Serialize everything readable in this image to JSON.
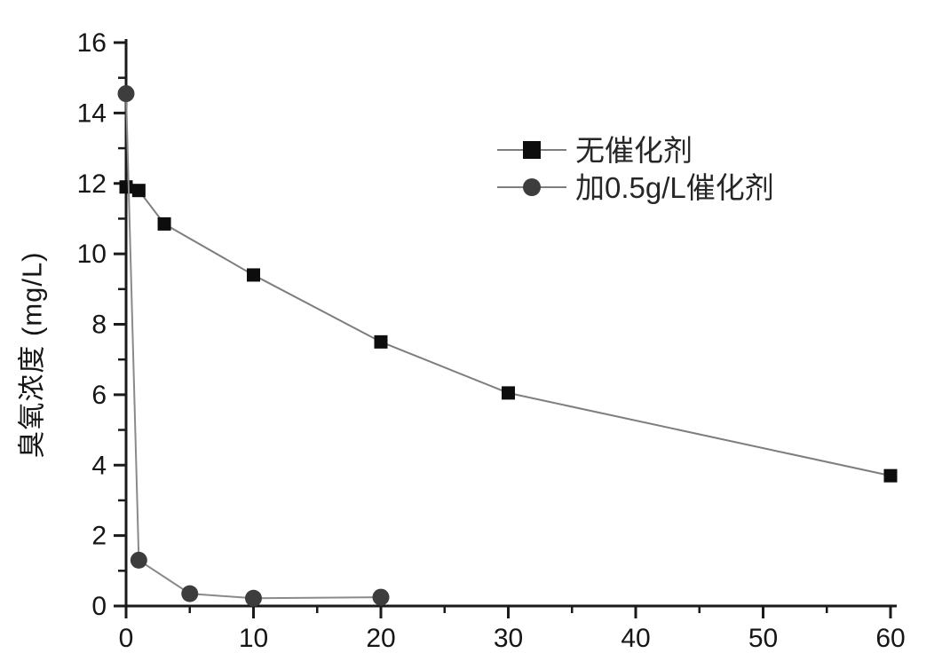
{
  "chart_data": {
    "type": "line",
    "title": "",
    "xlabel": "",
    "ylabel": "臭氧浓度 (mg/L)",
    "xlim": [
      0,
      60
    ],
    "ylim": [
      0,
      16
    ],
    "x_major_ticks": [
      0,
      10,
      20,
      30,
      40,
      50,
      60
    ],
    "x_minor_ticks": [
      5,
      15,
      25,
      35,
      45,
      55
    ],
    "y_major_ticks": [
      0,
      2,
      4,
      6,
      8,
      10,
      12,
      14,
      16
    ],
    "y_minor_ticks": [
      1,
      3,
      5,
      7,
      9,
      11,
      13,
      15
    ],
    "grid": false,
    "legend_position": "upper-right-inside",
    "colors": {
      "axis": "#1a1a1a",
      "series_line": "#7e7e7e",
      "square_marker": "#0d0d0d",
      "circle_marker": "#3d3d3d"
    },
    "series": [
      {
        "name": "无催化剂",
        "marker": "square",
        "marker_color": "#0d0d0d",
        "line_color": "#7e7e7e",
        "points": [
          [
            0,
            11.9
          ],
          [
            1,
            11.8
          ],
          [
            3,
            10.85
          ],
          [
            10,
            9.4
          ],
          [
            20,
            7.5
          ],
          [
            30,
            6.05
          ],
          [
            60,
            3.7
          ]
        ]
      },
      {
        "name": "加0.5g/L催化剂",
        "marker": "circle",
        "marker_color": "#3d3d3d",
        "line_color": "#8a8a8a",
        "points": [
          [
            0,
            14.55
          ],
          [
            1,
            1.3
          ],
          [
            5,
            0.35
          ],
          [
            10,
            0.22
          ],
          [
            20,
            0.25
          ]
        ]
      }
    ]
  }
}
